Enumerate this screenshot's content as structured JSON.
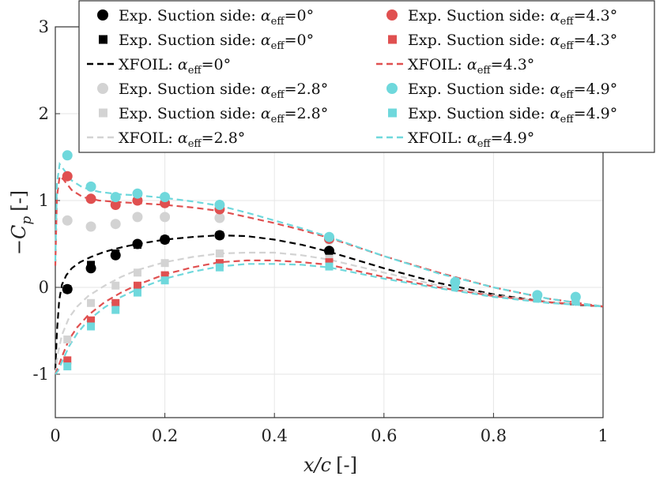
{
  "chart_data": {
    "type": "scatter",
    "xlabel_var": "x/c",
    "xlabel_unit": "[-]",
    "ylabel_var": "−C",
    "ylabel_sub": "p",
    "ylabel_unit": "[-]",
    "xlim": [
      0,
      1
    ],
    "ylim": [
      -1.5,
      3
    ],
    "xticks": [
      0,
      0.2,
      0.4,
      0.6,
      0.8,
      1
    ],
    "xtick_labels": [
      "0",
      "0.2",
      "0.4",
      "0.6",
      "0.8",
      "1"
    ],
    "yticks": [
      -1,
      0,
      1,
      2,
      3
    ],
    "ytick_labels": [
      "-1",
      "0",
      "1",
      "2",
      "3"
    ],
    "grid": true,
    "legend_position": "top",
    "colors": {
      "a0": "#000000",
      "a28": "#d3d3d3",
      "a43": "#e05050",
      "a49": "#6fd8dc"
    },
    "series": [
      {
        "name": "Exp. Suction side",
        "alpha": "0°",
        "marker": "circle",
        "color_key": "a0",
        "x": [
          0.022,
          0.065,
          0.11,
          0.15,
          0.2,
          0.3,
          0.5
        ],
        "y": [
          -0.02,
          0.22,
          0.37,
          0.5,
          0.55,
          0.6,
          0.42
        ]
      },
      {
        "name": "Exp. Suction side",
        "alpha": "0°",
        "marker": "square",
        "color_key": "a0",
        "x": [
          0.022,
          0.065,
          0.11,
          0.15,
          0.2,
          0.3,
          0.5
        ],
        "y": [
          -0.02,
          0.26,
          0.39,
          0.49,
          0.55,
          0.6,
          0.41
        ]
      },
      {
        "name": "XFOIL",
        "alpha": "0°",
        "marker": "dashed-line",
        "color_key": "a0",
        "x": [
          0,
          0.003,
          0.007,
          0.012,
          0.02,
          0.03,
          0.045,
          0.065,
          0.09,
          0.12,
          0.15,
          0.2,
          0.25,
          0.3,
          0.35,
          0.4,
          0.45,
          0.5,
          0.6,
          0.7,
          0.8,
          0.9,
          0.95,
          1.0
        ],
        "y": [
          -0.95,
          -0.5,
          -0.15,
          0.03,
          0.14,
          0.22,
          0.29,
          0.35,
          0.41,
          0.46,
          0.5,
          0.55,
          0.58,
          0.6,
          0.59,
          0.55,
          0.49,
          0.41,
          0.22,
          0.05,
          -0.08,
          -0.17,
          -0.2,
          -0.22
        ]
      },
      {
        "name": "Exp. Suction side",
        "alpha": "2.8°",
        "marker": "circle",
        "color_key": "a28",
        "x": [
          0.022,
          0.065,
          0.11,
          0.15,
          0.2,
          0.3,
          0.5
        ],
        "y": [
          0.77,
          0.7,
          0.73,
          0.81,
          0.81,
          0.8,
          0.55
        ]
      },
      {
        "name": "Exp. Suction side",
        "alpha": "2.8°",
        "marker": "square",
        "color_key": "a28",
        "x": [
          0.022,
          0.065,
          0.11,
          0.15,
          0.2,
          0.3,
          0.5,
          0.73,
          0.88,
          0.95
        ],
        "y": [
          -0.6,
          -0.18,
          0.02,
          0.17,
          0.28,
          0.39,
          0.33,
          0.03,
          -0.11,
          -0.12
        ]
      },
      {
        "name": "XFOIL",
        "alpha": "2.8°",
        "marker": "dashed-line",
        "color_key": "a28",
        "x": [
          0,
          0.005,
          0.012,
          0.025,
          0.04,
          0.06,
          0.09,
          0.12,
          0.15,
          0.2,
          0.25,
          0.3,
          0.35,
          0.4,
          0.45,
          0.5,
          0.6,
          0.7,
          0.8,
          0.9,
          1.0
        ],
        "y": [
          -1.0,
          -0.75,
          -0.55,
          -0.35,
          -0.22,
          -0.1,
          0.02,
          0.12,
          0.2,
          0.29,
          0.35,
          0.39,
          0.4,
          0.4,
          0.37,
          0.32,
          0.17,
          0.02,
          -0.09,
          -0.17,
          -0.22
        ]
      },
      {
        "name": "Exp. Suction side",
        "alpha": "4.3°",
        "marker": "circle",
        "color_key": "a43",
        "x": [
          0.022,
          0.065,
          0.11,
          0.15,
          0.2,
          0.3,
          0.5
        ],
        "y": [
          1.28,
          1.02,
          0.95,
          1.0,
          0.97,
          0.9,
          0.56
        ]
      },
      {
        "name": "Exp. Suction side",
        "alpha": "4.3°",
        "marker": "square",
        "color_key": "a43",
        "x": [
          0.022,
          0.065,
          0.11,
          0.15,
          0.2,
          0.3,
          0.5,
          0.73,
          0.88,
          0.95
        ],
        "y": [
          -0.84,
          -0.38,
          -0.18,
          0.02,
          0.14,
          0.28,
          0.29,
          0.02,
          -0.12,
          -0.14
        ]
      },
      {
        "name": "XFOIL",
        "alpha": "4.3°",
        "marker": "dashed-line",
        "color_key": "a43",
        "x": [
          0,
          0.003,
          0.008,
          0.015,
          0.03,
          0.05,
          0.08,
          0.12,
          0.15,
          0.2,
          0.25,
          0.3,
          0.35,
          0.4,
          0.45,
          0.5,
          0.6,
          0.7,
          0.8,
          0.9,
          1.0
        ],
        "y": [
          0.25,
          1.05,
          1.28,
          1.24,
          1.12,
          1.04,
          1.0,
          0.98,
          0.97,
          0.95,
          0.92,
          0.88,
          0.81,
          0.74,
          0.66,
          0.57,
          0.36,
          0.17,
          0.0,
          -0.13,
          -0.22
        ]
      },
      {
        "name": "XFOIL",
        "alpha": "4.3°",
        "marker": "dashed-line",
        "color_key": "a43",
        "x": [
          0,
          0.005,
          0.012,
          0.025,
          0.04,
          0.06,
          0.09,
          0.12,
          0.15,
          0.2,
          0.25,
          0.3,
          0.35,
          0.4,
          0.45,
          0.5,
          0.6,
          0.7,
          0.8,
          0.9,
          1.0
        ],
        "y": [
          -1.0,
          -0.92,
          -0.8,
          -0.6,
          -0.46,
          -0.32,
          -0.17,
          -0.06,
          0.03,
          0.15,
          0.23,
          0.29,
          0.31,
          0.31,
          0.29,
          0.26,
          0.12,
          0.0,
          -0.1,
          -0.17,
          -0.22
        ]
      },
      {
        "name": "Exp. Suction side",
        "alpha": "4.9°",
        "marker": "circle",
        "color_key": "a49",
        "x": [
          0.022,
          0.065,
          0.11,
          0.15,
          0.2,
          0.3,
          0.5,
          0.73,
          0.88,
          0.95
        ],
        "y": [
          1.52,
          1.16,
          1.04,
          1.08,
          1.04,
          0.95,
          0.58,
          0.06,
          -0.09,
          -0.11
        ]
      },
      {
        "name": "Exp. Suction side",
        "alpha": "4.9°",
        "marker": "square",
        "color_key": "a49",
        "x": [
          0.022,
          0.065,
          0.11,
          0.15,
          0.2,
          0.3,
          0.5,
          0.73,
          0.88,
          0.95
        ],
        "y": [
          -0.91,
          -0.45,
          -0.26,
          -0.06,
          0.08,
          0.23,
          0.24,
          0.01,
          -0.13,
          -0.16
        ]
      },
      {
        "name": "XFOIL",
        "alpha": "4.9°",
        "marker": "dashed-line",
        "color_key": "a49",
        "x": [
          0,
          0.003,
          0.008,
          0.015,
          0.03,
          0.05,
          0.08,
          0.12,
          0.15,
          0.2,
          0.25,
          0.3,
          0.35,
          0.4,
          0.45,
          0.5,
          0.6,
          0.7,
          0.8,
          0.9,
          1.0
        ],
        "y": [
          0.3,
          1.2,
          1.42,
          1.36,
          1.23,
          1.15,
          1.1,
          1.07,
          1.06,
          1.03,
          0.99,
          0.94,
          0.86,
          0.77,
          0.68,
          0.58,
          0.36,
          0.16,
          0.0,
          -0.13,
          -0.22
        ]
      },
      {
        "name": "XFOIL",
        "alpha": "4.9°",
        "marker": "dashed-line",
        "color_key": "a49",
        "x": [
          0,
          0.005,
          0.012,
          0.025,
          0.04,
          0.06,
          0.09,
          0.12,
          0.15,
          0.2,
          0.25,
          0.3,
          0.35,
          0.4,
          0.45,
          0.5,
          0.6,
          0.7,
          0.8,
          0.9,
          1.0
        ],
        "y": [
          -1.0,
          -0.96,
          -0.86,
          -0.68,
          -0.53,
          -0.38,
          -0.23,
          -0.11,
          -0.02,
          0.1,
          0.18,
          0.24,
          0.27,
          0.27,
          0.26,
          0.23,
          0.1,
          -0.01,
          -0.11,
          -0.18,
          -0.22
        ]
      }
    ],
    "legend": [
      {
        "text": "Exp. Suction side: ",
        "alpha": "0°",
        "marker": "circle",
        "color_key": "a0",
        "col": 0,
        "row": 0
      },
      {
        "text": "Exp. Suction side: ",
        "alpha": "0°",
        "marker": "square",
        "color_key": "a0",
        "col": 0,
        "row": 1
      },
      {
        "text": "XFOIL: ",
        "alpha": "0°",
        "marker": "dash",
        "color_key": "a0",
        "col": 0,
        "row": 2
      },
      {
        "text": "Exp. Suction side: ",
        "alpha": "2.8°",
        "marker": "circle",
        "color_key": "a28",
        "col": 0,
        "row": 3
      },
      {
        "text": "Exp. Suction side: ",
        "alpha": "2.8°",
        "marker": "square",
        "color_key": "a28",
        "col": 0,
        "row": 4
      },
      {
        "text": "XFOIL: ",
        "alpha": "2.8°",
        "marker": "dash",
        "color_key": "a28",
        "col": 0,
        "row": 5
      },
      {
        "text": "Exp. Suction side: ",
        "alpha": "4.3°",
        "marker": "circle",
        "color_key": "a43",
        "col": 1,
        "row": 0
      },
      {
        "text": "Exp. Suction side: ",
        "alpha": "4.3°",
        "marker": "square",
        "color_key": "a43",
        "col": 1,
        "row": 1
      },
      {
        "text": "XFOIL: ",
        "alpha": "4.3°",
        "marker": "dash",
        "color_key": "a43",
        "col": 1,
        "row": 2
      },
      {
        "text": "Exp. Suction side: ",
        "alpha": "4.9°",
        "marker": "circle",
        "color_key": "a49",
        "col": 1,
        "row": 3
      },
      {
        "text": "Exp. Suction side: ",
        "alpha": "4.9°",
        "marker": "square",
        "color_key": "a49",
        "col": 1,
        "row": 4
      },
      {
        "text": "XFOIL: ",
        "alpha": "4.9°",
        "marker": "dash",
        "color_key": "a49",
        "col": 1,
        "row": 5
      }
    ],
    "legend_alpha_symbol": "α",
    "legend_alpha_sub": "eff",
    "legend_equals": "="
  }
}
